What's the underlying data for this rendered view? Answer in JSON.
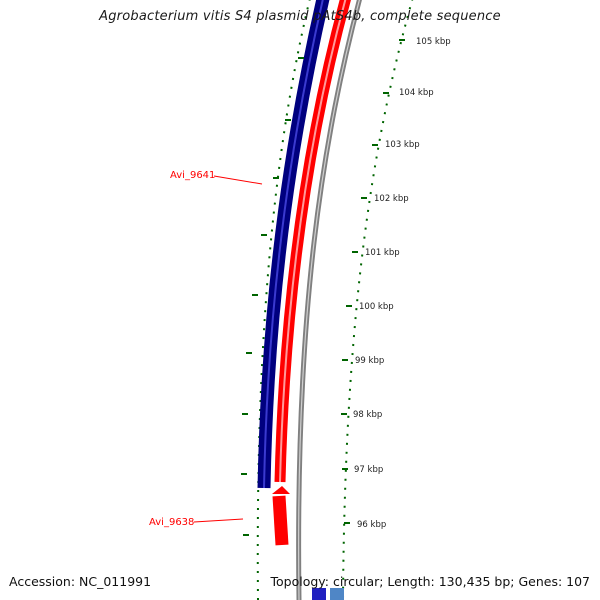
{
  "title": "Agrobacterium vitis S4 plasmid pAtS4b, complete sequence",
  "footer": {
    "accession": "Accession: NC_011991",
    "summary": "Topology: circular; Length: 130,435 bp; Genes: 107"
  },
  "colors": {
    "forward_track": "#00007f",
    "reverse_track": "#ff0000",
    "backbone": "#808080",
    "ruler": "#006400",
    "label_red": "#ff0000"
  },
  "scale_ticks": [
    {
      "label": "105 kbp",
      "kbp": 105
    },
    {
      "label": "104 kbp",
      "kbp": 104
    },
    {
      "label": "103 kbp",
      "kbp": 103
    },
    {
      "label": "102 kbp",
      "kbp": 102
    },
    {
      "label": "101 kbp",
      "kbp": 101
    },
    {
      "label": "100 kbp",
      "kbp": 100
    },
    {
      "label": "99 kbp",
      "kbp": 99
    },
    {
      "label": "98 kbp",
      "kbp": 98
    },
    {
      "label": "97 kbp",
      "kbp": 97
    },
    {
      "label": "96 kbp",
      "kbp": 96
    }
  ],
  "gene_labels": [
    {
      "name": "Avi_9641"
    },
    {
      "name": "Avi_9638"
    }
  ]
}
